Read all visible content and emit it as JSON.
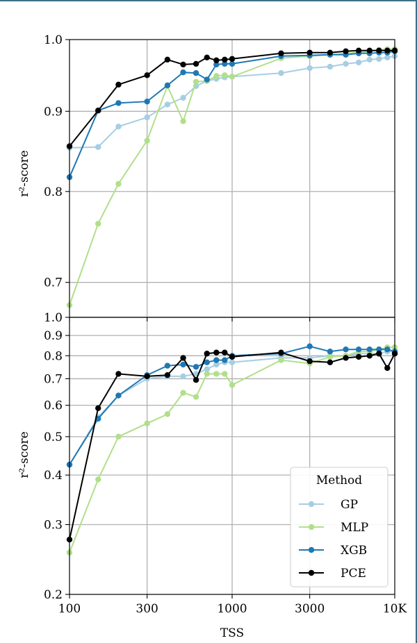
{
  "chart_data": [
    {
      "type": "line",
      "xscale": "log",
      "yscale": "log",
      "xlim": [
        100,
        10000
      ],
      "ylim": [
        0.665,
        1.0
      ],
      "ylabel": "r²-score",
      "yticks": [
        0.7,
        0.8,
        0.9,
        1.0
      ],
      "ytick_labels": [
        "0.7",
        "0.8",
        "0.9",
        "1.0"
      ],
      "grid": true,
      "series": [
        {
          "name": "GP",
          "color": "#a6cee3",
          "x": [
            100,
            150,
            200,
            300,
            400,
            500,
            600,
            700,
            800,
            900,
            1000,
            2000,
            3000,
            4000,
            5000,
            6000,
            7000,
            8000,
            9000,
            10000
          ],
          "y": [
            0.853,
            0.854,
            0.88,
            0.892,
            0.909,
            0.918,
            0.934,
            0.941,
            0.944,
            0.946,
            0.947,
            0.952,
            0.959,
            0.961,
            0.965,
            0.967,
            0.971,
            0.972,
            0.974,
            0.976
          ]
        },
        {
          "name": "MLP",
          "color": "#b2df8a",
          "x": [
            100,
            150,
            200,
            300,
            400,
            500,
            600,
            700,
            800,
            900,
            1000,
            2000,
            3000,
            4000,
            5000,
            6000,
            7000,
            8000,
            9000,
            10000
          ],
          "y": [
            0.677,
            0.763,
            0.809,
            0.862,
            0.934,
            0.887,
            0.94,
            0.941,
            0.948,
            0.949,
            0.947,
            0.973,
            0.976,
            0.978,
            0.98,
            0.981,
            0.983,
            0.985,
            0.986,
            0.986
          ]
        },
        {
          "name": "XGB",
          "color": "#1f78b4",
          "x": [
            100,
            150,
            200,
            300,
            400,
            500,
            600,
            700,
            800,
            900,
            1000,
            2000,
            3000,
            4000,
            5000,
            6000,
            7000,
            8000,
            9000,
            10000
          ],
          "y": [
            0.817,
            0.901,
            0.911,
            0.913,
            0.935,
            0.953,
            0.952,
            0.943,
            0.964,
            0.965,
            0.965,
            0.976,
            0.977,
            0.978,
            0.978,
            0.98,
            0.98,
            0.981,
            0.981,
            0.983
          ]
        },
        {
          "name": "PCE",
          "color": "#000000",
          "x": [
            100,
            150,
            200,
            300,
            400,
            500,
            600,
            700,
            800,
            900,
            1000,
            2000,
            3000,
            4000,
            5000,
            6000,
            7000,
            8000,
            9000,
            10000
          ],
          "y": [
            0.855,
            0.901,
            0.936,
            0.949,
            0.971,
            0.964,
            0.965,
            0.974,
            0.97,
            0.971,
            0.972,
            0.98,
            0.981,
            0.981,
            0.983,
            0.984,
            0.984,
            0.984,
            0.984,
            0.984
          ]
        }
      ]
    },
    {
      "type": "line",
      "xscale": "log",
      "yscale": "log",
      "xlim": [
        100,
        10000
      ],
      "ylim": [
        0.2,
        1.0
      ],
      "xlabel": "TSS",
      "ylabel": "r²-score",
      "xticks": [
        100,
        300,
        1000,
        3000,
        10000
      ],
      "xtick_labels": [
        "100",
        "300",
        "1000",
        "3000",
        "10K"
      ],
      "yticks": [
        0.2,
        0.3,
        0.4,
        0.5,
        0.6,
        0.7,
        0.8,
        0.9,
        1.0
      ],
      "ytick_labels": [
        "0.2",
        "0.3",
        "0.4",
        "0.5",
        "0.6",
        "0.7",
        "0.8",
        "0.9",
        "1.0"
      ],
      "grid": true,
      "legend": {
        "title": "Method",
        "position": "bottom-right",
        "entries": [
          "GP",
          "MLP",
          "XGB",
          "PCE"
        ]
      },
      "series": [
        {
          "name": "GP",
          "color": "#a6cee3",
          "x": [
            100,
            150,
            200,
            300,
            400,
            500,
            600,
            700,
            800,
            900,
            1000,
            2000,
            3000,
            4000,
            5000,
            6000,
            7000,
            8000,
            9000,
            10000
          ],
          "y": [
            0.425,
            0.56,
            0.635,
            0.7,
            0.71,
            0.71,
            0.72,
            0.74,
            0.76,
            0.77,
            0.77,
            0.79,
            0.79,
            0.8,
            0.8,
            0.81,
            0.81,
            0.81,
            0.82,
            0.82
          ]
        },
        {
          "name": "MLP",
          "color": "#b2df8a",
          "x": [
            100,
            150,
            200,
            300,
            400,
            500,
            600,
            700,
            800,
            900,
            1000,
            2000,
            3000,
            4000,
            5000,
            6000,
            7000,
            8000,
            9000,
            10000
          ],
          "y": [
            0.255,
            0.39,
            0.5,
            0.54,
            0.57,
            0.645,
            0.63,
            0.72,
            0.72,
            0.72,
            0.675,
            0.78,
            0.765,
            0.795,
            0.8,
            0.82,
            0.82,
            0.83,
            0.84,
            0.84
          ]
        },
        {
          "name": "XGB",
          "color": "#1f78b4",
          "x": [
            100,
            150,
            200,
            300,
            400,
            500,
            600,
            700,
            800,
            900,
            1000,
            2000,
            3000,
            4000,
            5000,
            6000,
            7000,
            8000,
            9000,
            10000
          ],
          "y": [
            0.425,
            0.555,
            0.635,
            0.715,
            0.755,
            0.76,
            0.75,
            0.77,
            0.78,
            0.78,
            0.8,
            0.81,
            0.845,
            0.82,
            0.83,
            0.83,
            0.83,
            0.83,
            0.83,
            0.82
          ]
        },
        {
          "name": "PCE",
          "color": "#000000",
          "x": [
            100,
            150,
            200,
            300,
            400,
            500,
            600,
            700,
            800,
            900,
            1000,
            2000,
            3000,
            4000,
            5000,
            6000,
            7000,
            8000,
            9000,
            10000
          ],
          "y": [
            0.275,
            0.59,
            0.72,
            0.71,
            0.715,
            0.79,
            0.695,
            0.81,
            0.815,
            0.815,
            0.795,
            0.815,
            0.775,
            0.77,
            0.79,
            0.795,
            0.8,
            0.81,
            0.745,
            0.81
          ]
        }
      ]
    }
  ]
}
